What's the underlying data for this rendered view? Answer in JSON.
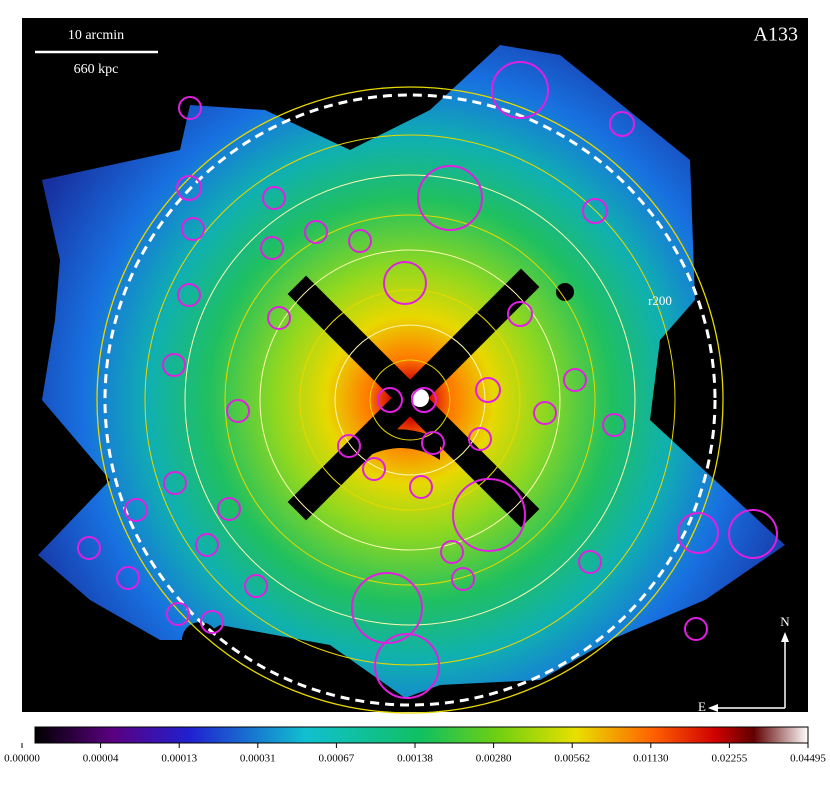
{
  "label": "A133",
  "scale_bar": {
    "angular": "10 arcmin",
    "physical": "660 kpc"
  },
  "radius_label": "r200",
  "compass": {
    "north": "N",
    "east": "E"
  },
  "colorbar": {
    "ticks": [
      "0.00000",
      "0.00004",
      "0.00013",
      "0.00031",
      "0.00067",
      "0.00138",
      "0.00280",
      "0.00562",
      "0.01130",
      "0.02255",
      "0.04495"
    ]
  }
}
